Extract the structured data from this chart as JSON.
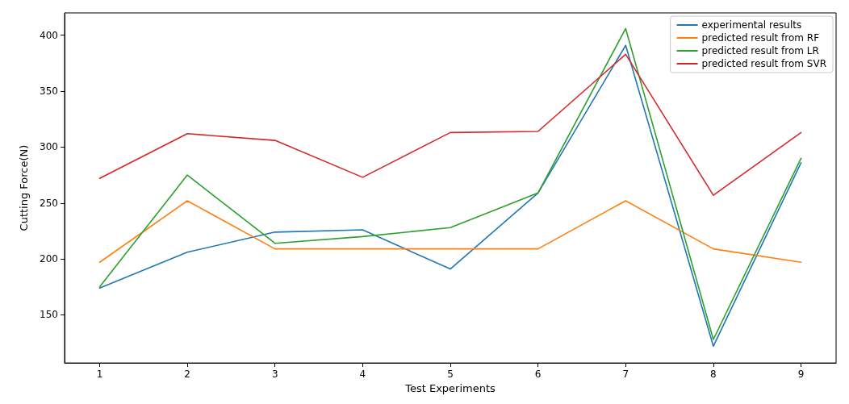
{
  "chart_data": {
    "type": "line",
    "xlabel": "Test Experiments",
    "ylabel": "Cutting Force(N)",
    "x": [
      1,
      2,
      3,
      4,
      5,
      6,
      7,
      8,
      9
    ],
    "xlim": [
      0.6,
      9.4
    ],
    "xticks": [
      1,
      2,
      3,
      4,
      5,
      6,
      7,
      8,
      9
    ],
    "ylim": [
      107,
      420
    ],
    "yticks": [
      150,
      200,
      250,
      300,
      350,
      400
    ],
    "grid": false,
    "legend": "top right",
    "marker": "none",
    "line_style": "solid",
    "series": [
      {
        "name": "experimental results",
        "color": "#1f77b4",
        "values": [
          174,
          206,
          224,
          226,
          191,
          259,
          391,
          122,
          286
        ]
      },
      {
        "name": "predicted result from RF",
        "color": "#ff7f0e",
        "values": [
          197,
          252,
          209,
          209,
          209,
          209,
          252,
          209,
          197
        ]
      },
      {
        "name": "predicted result from LR",
        "color": "#2ca02c",
        "values": [
          175,
          275,
          214,
          220,
          228,
          259,
          406,
          128,
          290
        ]
      },
      {
        "name": "predicted result from SVR",
        "color": "#d62728",
        "values": [
          272,
          312,
          306,
          273,
          313,
          314,
          383,
          257,
          313
        ]
      }
    ]
  }
}
